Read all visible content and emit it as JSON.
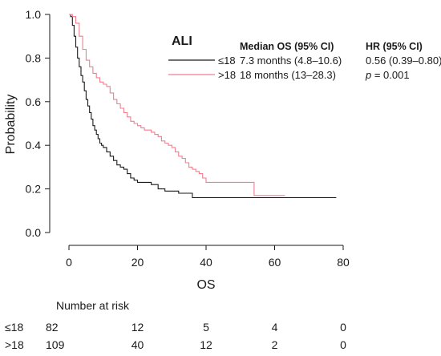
{
  "chart_data": {
    "type": "line",
    "xlabel": "OS",
    "ylabel": "Probability",
    "xlim": [
      0,
      80
    ],
    "ylim": [
      0,
      1
    ],
    "x_ticks": [
      "0",
      "20",
      "40",
      "60",
      "80"
    ],
    "y_ticks": [
      "0.0",
      "0.2",
      "0.4",
      "0.6",
      "0.8",
      "1.0"
    ],
    "grid": false,
    "legend": {
      "title": "ALI",
      "placement": "top-right",
      "header_os": "Median OS (95% CI)",
      "header_hr": "HR (95% CI)",
      "entries": [
        {
          "label": "≤18",
          "color": "#1a1a1a",
          "median_os": "7.3 months (4.8–10.6)",
          "hr": "0.56  (0.39–0.80)"
        },
        {
          "label": ">18",
          "color": "#f07f8f",
          "median_os": "18 months (13–28.3)",
          "p_label": "p",
          "p_value": " = 0.001"
        }
      ]
    },
    "series": [
      {
        "name": "≤18",
        "color": "#1a1a1a",
        "x": [
          0,
          0.5,
          1,
          1.5,
          2,
          2.5,
          3,
          3.5,
          4,
          4.5,
          5,
          5.5,
          6,
          6.5,
          7,
          7.5,
          8,
          8.5,
          9,
          9.5,
          10,
          11,
          12,
          13,
          14,
          15,
          16,
          17,
          18,
          19,
          20,
          22,
          24,
          26,
          28,
          30,
          32,
          34,
          36,
          40,
          50,
          60,
          70,
          78
        ],
        "y": [
          1.0,
          0.99,
          0.95,
          0.9,
          0.85,
          0.8,
          0.76,
          0.72,
          0.69,
          0.65,
          0.61,
          0.58,
          0.55,
          0.52,
          0.49,
          0.47,
          0.45,
          0.43,
          0.41,
          0.4,
          0.39,
          0.37,
          0.35,
          0.33,
          0.31,
          0.3,
          0.29,
          0.27,
          0.25,
          0.24,
          0.23,
          0.23,
          0.22,
          0.2,
          0.19,
          0.19,
          0.18,
          0.18,
          0.16,
          0.16,
          0.16,
          0.16,
          0.16,
          0.16
        ]
      },
      {
        "name": ">18",
        "color": "#f07f8f",
        "x": [
          0,
          1,
          2,
          3,
          4,
          5,
          6,
          7,
          8,
          9,
          10,
          11,
          12,
          13,
          14,
          15,
          16,
          17,
          18,
          19,
          20,
          21,
          22,
          23,
          24,
          25,
          26,
          27,
          28,
          29,
          30,
          31,
          32,
          33,
          34,
          35,
          36,
          37,
          38,
          39,
          40,
          42,
          45,
          48,
          50,
          53,
          54,
          56,
          58,
          60,
          63
        ],
        "y": [
          1.0,
          0.99,
          0.96,
          0.9,
          0.84,
          0.79,
          0.76,
          0.73,
          0.71,
          0.69,
          0.68,
          0.67,
          0.64,
          0.61,
          0.59,
          0.57,
          0.55,
          0.53,
          0.51,
          0.5,
          0.49,
          0.48,
          0.47,
          0.47,
          0.46,
          0.45,
          0.44,
          0.42,
          0.41,
          0.4,
          0.39,
          0.37,
          0.35,
          0.34,
          0.32,
          0.3,
          0.29,
          0.28,
          0.27,
          0.25,
          0.23,
          0.23,
          0.23,
          0.23,
          0.23,
          0.23,
          0.17,
          0.17,
          0.17,
          0.17,
          0.17
        ]
      }
    ],
    "risk_table": {
      "title": "Number at risk",
      "times": [
        0,
        20,
        40,
        60,
        80
      ],
      "rows": [
        {
          "label": "≤18",
          "counts": [
            "82",
            "12",
            "5",
            "4",
            "0"
          ]
        },
        {
          "label": ">18",
          "counts": [
            "109",
            "40",
            "12",
            "2",
            "0"
          ]
        }
      ]
    }
  }
}
